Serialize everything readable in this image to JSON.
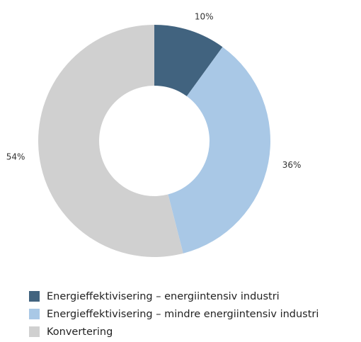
{
  "chart_data": {
    "type": "pie",
    "donut": true,
    "categories": [
      "Energieffektivisering – energiintensiv industri",
      "Energieffektivisering – mindre energiintensiv industri",
      "Konvertering"
    ],
    "values": [
      10,
      36,
      54
    ],
    "value_labels": [
      "10%",
      "36%",
      "54%"
    ],
    "colors": [
      "#41637f",
      "#a9c8e6",
      "#d0d0d0"
    ],
    "legend_position": "bottom-left",
    "title": ""
  }
}
